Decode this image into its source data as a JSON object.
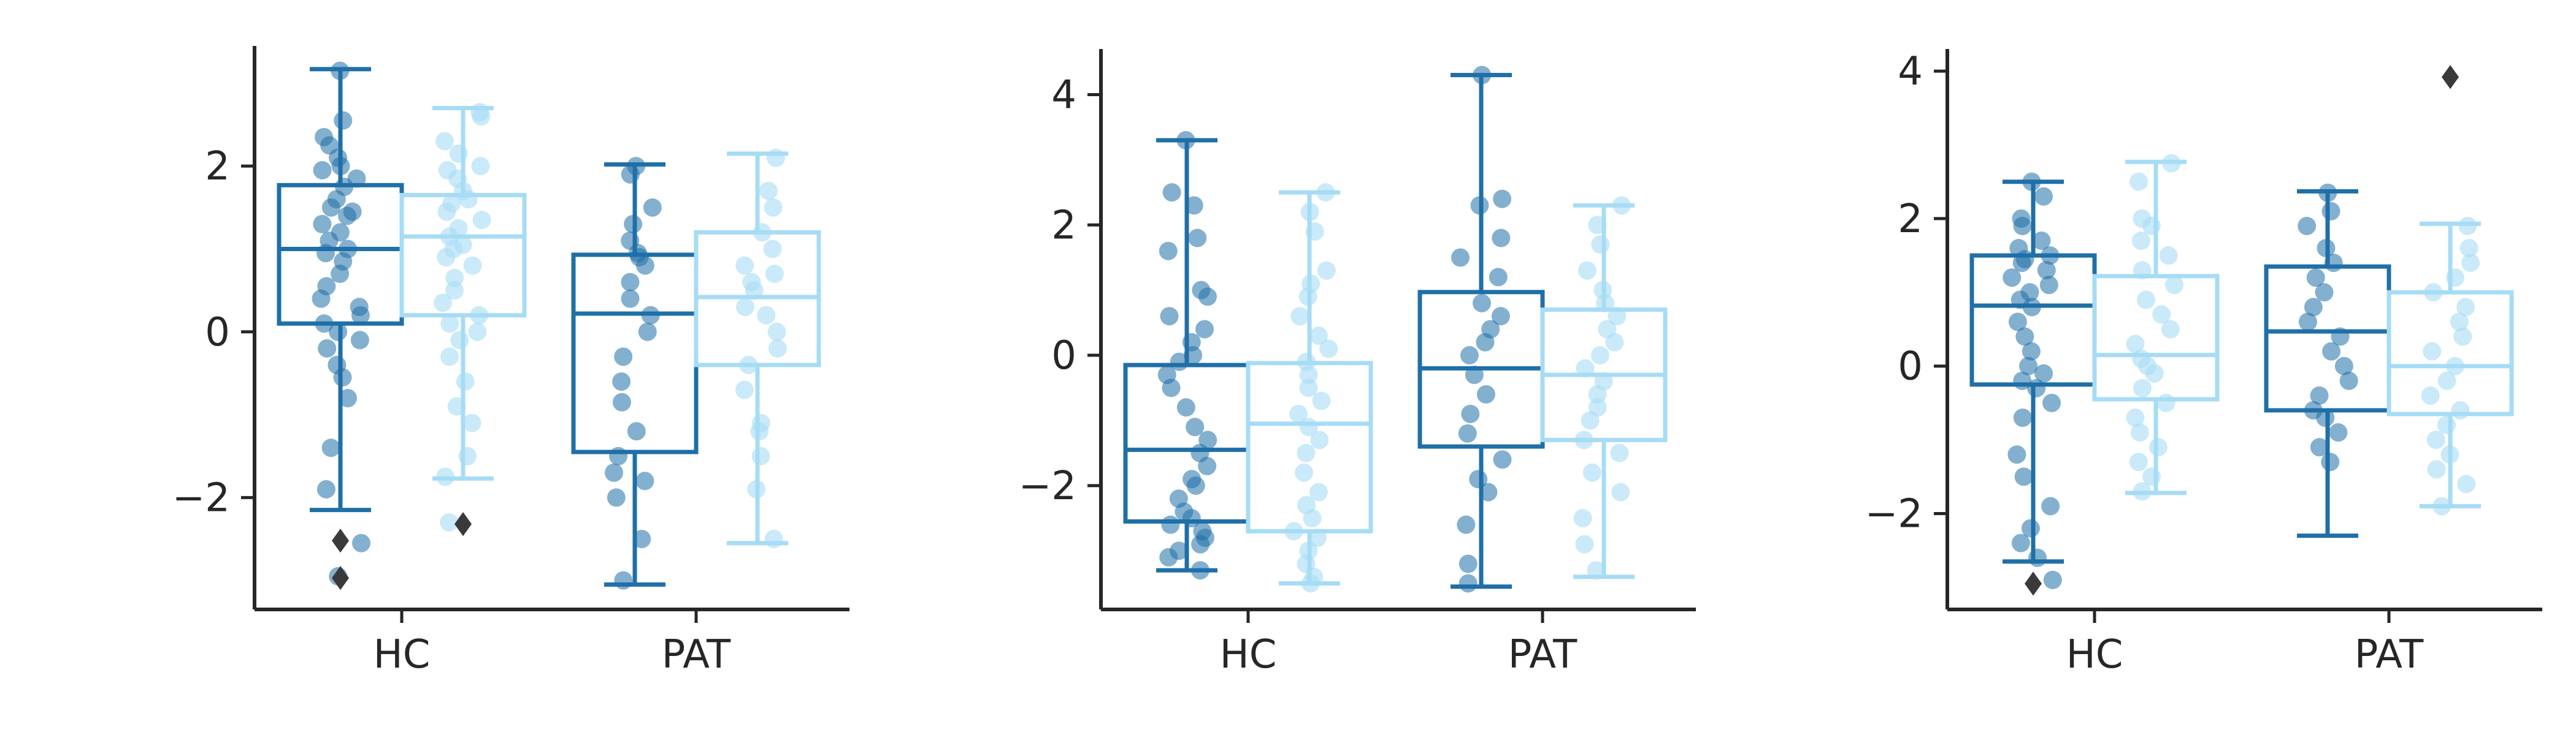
{
  "chart_data": [
    {
      "type": "box",
      "categories": [
        "HC",
        "PAT"
      ],
      "ylim": [
        -3.35,
        3.45
      ],
      "yticks": [
        -2,
        0,
        2
      ],
      "ytick_labels": [
        "−2",
        "0",
        "2"
      ],
      "grid": false,
      "series": [
        {
          "color": "#1f6fa8",
          "boxes": [
            {
              "category": "HC",
              "whisker_low": -2.15,
              "q1": 0.1,
              "median": 1.0,
              "q3": 1.77,
              "whisker_high": 3.17,
              "outliers": [
                -2.52,
                -2.97
              ],
              "points": [
                3.15,
                2.55,
                2.35,
                2.25,
                2.1,
                2.0,
                1.95,
                1.85,
                1.75,
                1.6,
                1.5,
                1.45,
                1.4,
                1.3,
                1.2,
                1.1,
                1.0,
                0.95,
                0.85,
                0.7,
                0.55,
                0.4,
                0.3,
                0.2,
                0.1,
                0.0,
                -0.1,
                -0.2,
                -0.4,
                -0.55,
                -0.8,
                -1.4,
                -1.9,
                -2.55,
                -2.95
              ]
            },
            {
              "category": "PAT",
              "whisker_low": -3.05,
              "q1": -1.45,
              "median": 0.22,
              "q3": 0.93,
              "whisker_high": 2.02,
              "outliers": [],
              "points": [
                2.0,
                1.9,
                1.5,
                1.3,
                1.1,
                0.95,
                0.9,
                0.8,
                0.6,
                0.4,
                0.2,
                0.0,
                -0.3,
                -0.6,
                -0.85,
                -1.2,
                -1.5,
                -1.7,
                -1.8,
                -2.0,
                -2.5,
                -3.0
              ]
            }
          ]
        },
        {
          "color": "#a6dcf5",
          "boxes": [
            {
              "category": "HC",
              "whisker_low": -1.77,
              "q1": 0.2,
              "median": 1.15,
              "q3": 1.65,
              "whisker_high": 2.7,
              "outliers": [
                -2.32
              ],
              "points": [
                2.65,
                2.6,
                2.3,
                2.15,
                2.0,
                1.95,
                1.85,
                1.7,
                1.6,
                1.55,
                1.45,
                1.35,
                1.25,
                1.15,
                1.05,
                1.0,
                0.9,
                0.8,
                0.65,
                0.5,
                0.35,
                0.2,
                0.1,
                0.0,
                -0.1,
                -0.3,
                -0.6,
                -0.9,
                -1.1,
                -1.5,
                -1.75,
                -2.3
              ]
            },
            {
              "category": "PAT",
              "whisker_low": -2.55,
              "q1": -0.4,
              "median": 0.42,
              "q3": 1.2,
              "whisker_high": 2.15,
              "outliers": [],
              "points": [
                2.1,
                1.7,
                1.5,
                1.2,
                1.0,
                0.8,
                0.7,
                0.6,
                0.5,
                0.3,
                0.2,
                0.0,
                -0.2,
                -0.4,
                -0.7,
                -1.1,
                -1.2,
                -1.5,
                -1.9,
                -2.5
              ]
            }
          ]
        }
      ]
    },
    {
      "type": "box",
      "categories": [
        "HC",
        "PAT"
      ],
      "ylim": [
        -3.9,
        4.7
      ],
      "yticks": [
        -2,
        0,
        2,
        4
      ],
      "ytick_labels": [
        "−2",
        "0",
        "2",
        "4"
      ],
      "grid": false,
      "series": [
        {
          "color": "#1f6fa8",
          "boxes": [
            {
              "category": "HC",
              "whisker_low": -3.3,
              "q1": -2.55,
              "median": -1.45,
              "q3": -0.15,
              "whisker_high": 3.3,
              "outliers": [],
              "points": [
                3.3,
                2.5,
                2.3,
                1.8,
                1.6,
                1.0,
                0.9,
                0.6,
                0.4,
                0.2,
                0.0,
                -0.1,
                -0.3,
                -0.5,
                -0.8,
                -1.1,
                -1.3,
                -1.5,
                -1.7,
                -1.9,
                -2.0,
                -2.2,
                -2.4,
                -2.5,
                -2.6,
                -2.7,
                -2.8,
                -2.9,
                -3.0,
                -3.1,
                -3.3
              ]
            },
            {
              "category": "PAT",
              "whisker_low": -3.55,
              "q1": -1.4,
              "median": -0.2,
              "q3": 0.97,
              "whisker_high": 4.3,
              "outliers": [],
              "points": [
                4.3,
                2.4,
                2.3,
                1.8,
                1.5,
                1.2,
                0.8,
                0.6,
                0.4,
                0.2,
                0.0,
                -0.3,
                -0.6,
                -0.9,
                -1.2,
                -1.6,
                -1.9,
                -2.1,
                -2.6,
                -3.2,
                -3.5
              ]
            }
          ]
        },
        {
          "color": "#a6dcf5",
          "boxes": [
            {
              "category": "HC",
              "whisker_low": -3.5,
              "q1": -2.7,
              "median": -1.05,
              "q3": -0.12,
              "whisker_high": 2.5,
              "outliers": [],
              "points": [
                2.5,
                2.2,
                1.9,
                1.3,
                1.1,
                0.9,
                0.6,
                0.3,
                0.1,
                -0.1,
                -0.3,
                -0.5,
                -0.7,
                -0.9,
                -1.1,
                -1.3,
                -1.5,
                -1.8,
                -2.1,
                -2.3,
                -2.5,
                -2.7,
                -2.8,
                -3.0,
                -3.2,
                -3.4,
                -3.5
              ]
            },
            {
              "category": "PAT",
              "whisker_low": -3.4,
              "q1": -1.3,
              "median": -0.3,
              "q3": 0.7,
              "whisker_high": 2.3,
              "outliers": [],
              "points": [
                2.3,
                2.0,
                1.7,
                1.3,
                1.0,
                0.8,
                0.6,
                0.4,
                0.2,
                0.0,
                -0.2,
                -0.4,
                -0.6,
                -0.8,
                -1.0,
                -1.3,
                -1.5,
                -1.8,
                -2.1,
                -2.5,
                -2.9,
                -3.3
              ]
            }
          ]
        }
      ]
    },
    {
      "type": "box",
      "categories": [
        "HC",
        "PAT"
      ],
      "ylim": [
        -3.3,
        4.3
      ],
      "yticks": [
        -2,
        0,
        2,
        4
      ],
      "ytick_labels": [
        "−2",
        "0",
        "2",
        "4"
      ],
      "grid": false,
      "series": [
        {
          "color": "#1f6fa8",
          "boxes": [
            {
              "category": "HC",
              "whisker_low": -2.65,
              "q1": -0.25,
              "median": 0.82,
              "q3": 1.5,
              "whisker_high": 2.5,
              "outliers": [
                -2.95
              ],
              "points": [
                2.5,
                2.3,
                2.0,
                1.9,
                1.7,
                1.6,
                1.5,
                1.45,
                1.4,
                1.3,
                1.2,
                1.1,
                1.0,
                0.9,
                0.8,
                0.6,
                0.4,
                0.2,
                0.0,
                -0.1,
                -0.2,
                -0.3,
                -0.5,
                -0.7,
                -1.2,
                -1.5,
                -1.9,
                -2.2,
                -2.4,
                -2.6,
                -2.9
              ]
            },
            {
              "category": "PAT",
              "whisker_low": -2.3,
              "q1": -0.6,
              "median": 0.47,
              "q3": 1.35,
              "whisker_high": 2.37,
              "outliers": [],
              "points": [
                2.35,
                2.1,
                1.9,
                1.6,
                1.4,
                1.2,
                1.0,
                0.8,
                0.6,
                0.4,
                0.2,
                0.0,
                -0.2,
                -0.4,
                -0.6,
                -0.7,
                -0.9,
                -1.1,
                -1.3
              ]
            }
          ]
        },
        {
          "color": "#a6dcf5",
          "boxes": [
            {
              "category": "HC",
              "whisker_low": -1.72,
              "q1": -0.45,
              "median": 0.15,
              "q3": 1.22,
              "whisker_high": 2.77,
              "outliers": [],
              "points": [
                2.75,
                2.5,
                2.0,
                1.9,
                1.7,
                1.5,
                1.3,
                1.1,
                0.9,
                0.7,
                0.5,
                0.3,
                0.1,
                0.0,
                -0.1,
                -0.3,
                -0.5,
                -0.7,
                -0.9,
                -1.1,
                -1.3,
                -1.5,
                -1.7
              ]
            },
            {
              "category": "PAT",
              "whisker_low": -1.9,
              "q1": -0.65,
              "median": 0.0,
              "q3": 1.0,
              "whisker_high": 1.93,
              "outliers": [
                3.92
              ],
              "points": [
                1.9,
                1.6,
                1.4,
                1.2,
                1.0,
                0.8,
                0.6,
                0.4,
                0.2,
                0.0,
                -0.2,
                -0.4,
                -0.6,
                -0.8,
                -1.0,
                -1.2,
                -1.4,
                -1.6,
                -1.9
              ]
            }
          ]
        }
      ]
    }
  ]
}
